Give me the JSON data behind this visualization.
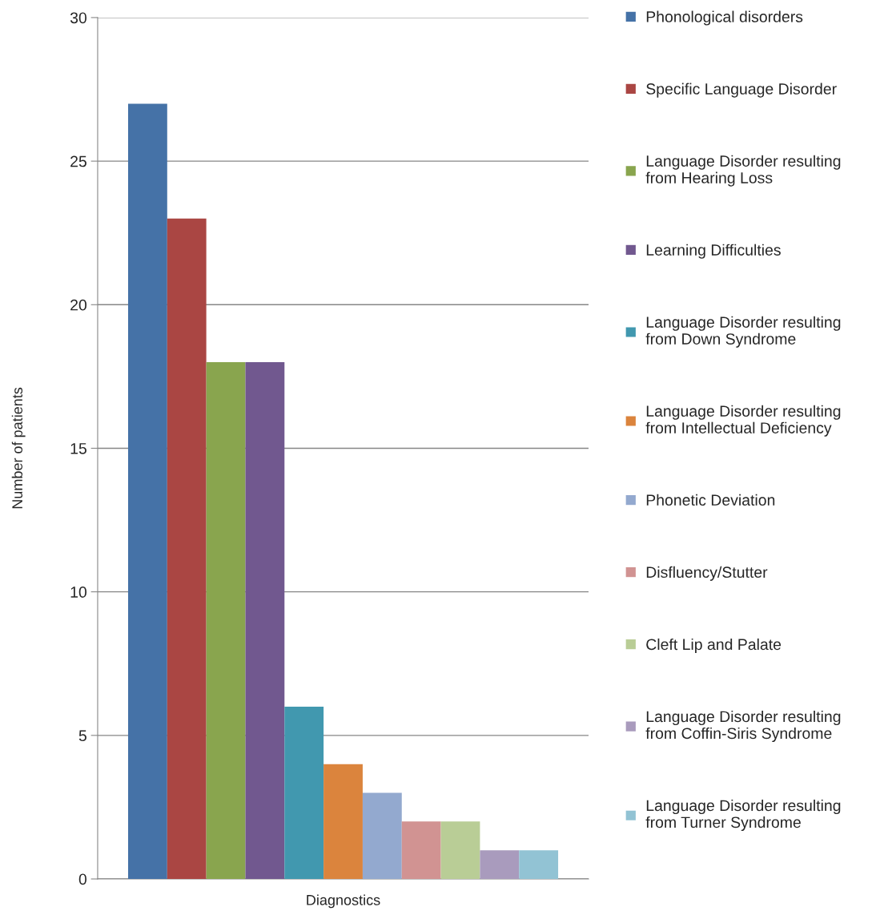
{
  "chart_data": {
    "type": "bar",
    "ylabel": "Number of patients",
    "categories": [
      "Diagnostics"
    ],
    "series": [
      {
        "name": "Phonological disorders",
        "color": "#4572a7",
        "values": [
          27
        ]
      },
      {
        "name": "Specific Language Disorder",
        "color": "#aa4643",
        "values": [
          23
        ]
      },
      {
        "name": "Language Disorder resulting\nfrom Hearing Loss",
        "color": "#89a54e",
        "values": [
          18
        ]
      },
      {
        "name": "Learning Difficulties",
        "color": "#71588f",
        "values": [
          18
        ]
      },
      {
        "name": "Language Disorder resulting\nfrom Down Syndrome",
        "color": "#4198af",
        "values": [
          6
        ]
      },
      {
        "name": "Language Disorder resulting\nfrom Intellectual Deficiency",
        "color": "#db843d",
        "values": [
          4
        ]
      },
      {
        "name": "Phonetic Deviation",
        "color": "#93a9cf",
        "values": [
          3
        ]
      },
      {
        "name": "Disfluency/Stutter",
        "color": "#d19392",
        "values": [
          2
        ]
      },
      {
        "name": "Cleft Lip and Palate",
        "color": "#b9cd96",
        "values": [
          2
        ]
      },
      {
        "name": "Language Disorder resulting\nfrom Coffin-Siris Syndrome",
        "color": "#a99bbd",
        "values": [
          1
        ]
      },
      {
        "name": "Language Disorder resulting\nfrom Turner Syndrome",
        "color": "#92c3d4",
        "values": [
          1
        ]
      }
    ],
    "ylim": [
      0,
      30
    ],
    "yticks": [
      0,
      5,
      10,
      15,
      20,
      25,
      30
    ],
    "grid": "y",
    "legend": "right"
  }
}
